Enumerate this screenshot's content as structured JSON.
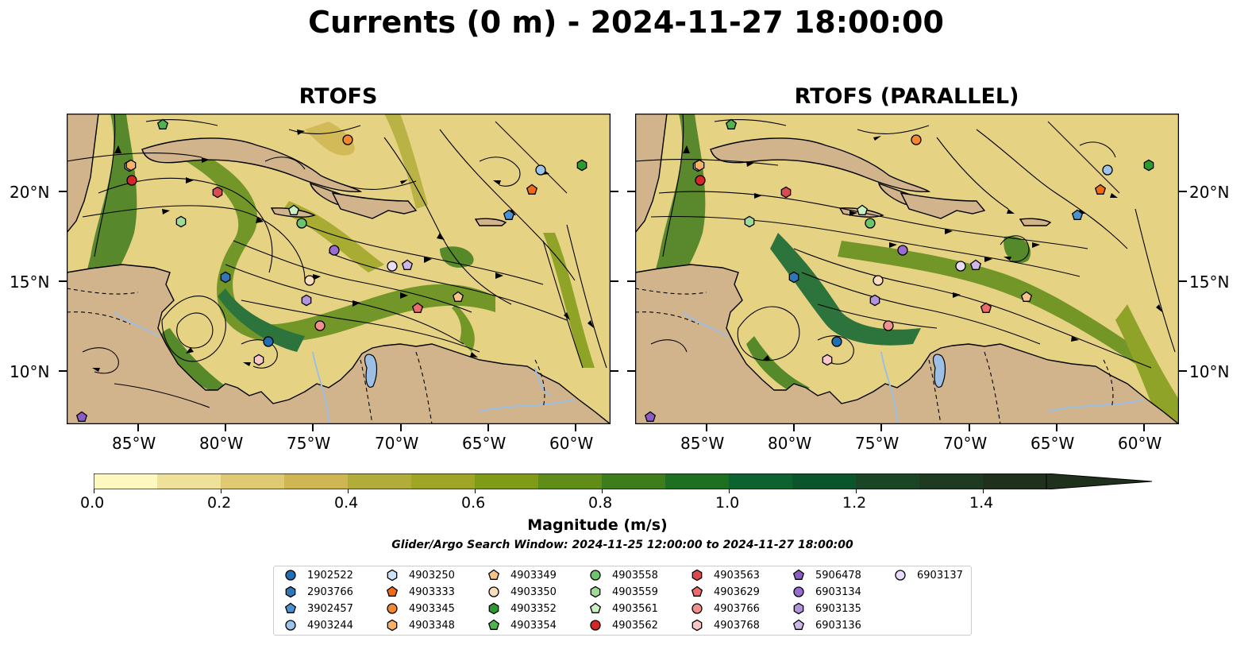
{
  "title": "Currents (0 m) - 2024-11-27 18:00:00",
  "panels": [
    {
      "title": "RTOFS"
    },
    {
      "title": "RTOFS (PARALLEL)"
    }
  ],
  "lat_ticks": [
    "20°N",
    "15°N",
    "10°N"
  ],
  "lon_ticks": [
    "85°W",
    "80°W",
    "75°W",
    "70°W",
    "65°W",
    "60°W"
  ],
  "colorbar": {
    "label": "Magnitude (m/s)",
    "ticks": [
      "0.0",
      "0.2",
      "0.4",
      "0.6",
      "0.8",
      "1.0",
      "1.2",
      "1.4"
    ],
    "colors": [
      "#fdf7c0",
      "#f0e19a",
      "#e0c973",
      "#cfb652",
      "#b2ad3a",
      "#9fa626",
      "#7f9b17",
      "#5f8d18",
      "#3e7d1b",
      "#1f6f23",
      "#0d6330",
      "#0b552d",
      "#1a4626",
      "#1e3b21",
      "#1f311c"
    ]
  },
  "search_window": "Glider/Argo Search Window: 2024-11-25 12:00:00 to 2024-11-27 18:00:00",
  "legend": [
    {
      "id": "1902522",
      "marker": "circle",
      "color": "#1f6fb4"
    },
    {
      "id": "2903766",
      "marker": "hexagon",
      "color": "#2f77b6"
    },
    {
      "id": "3902457",
      "marker": "pentagon",
      "color": "#4c91cf"
    },
    {
      "id": "4903244",
      "marker": "circle",
      "color": "#9cc3eb"
    },
    {
      "id": "4903250",
      "marker": "hexagon",
      "color": "#c9e3fb"
    },
    {
      "id": "4903333",
      "marker": "pentagon",
      "color": "#f26b12"
    },
    {
      "id": "4903345",
      "marker": "circle",
      "color": "#f5882e"
    },
    {
      "id": "4903348",
      "marker": "hexagon",
      "color": "#f7b267"
    },
    {
      "id": "4903349",
      "marker": "pentagon",
      "color": "#f6c48a"
    },
    {
      "id": "4903350",
      "marker": "circle",
      "color": "#fbdcbd"
    },
    {
      "id": "4903352",
      "marker": "hexagon",
      "color": "#2c9a2c"
    },
    {
      "id": "4903354",
      "marker": "pentagon",
      "color": "#4fb34f"
    },
    {
      "id": "4903558",
      "marker": "circle",
      "color": "#6cc46c"
    },
    {
      "id": "4903559",
      "marker": "hexagon",
      "color": "#9fdb97"
    },
    {
      "id": "4903561",
      "marker": "pentagon",
      "color": "#c9f0c0"
    },
    {
      "id": "4903562",
      "marker": "circle",
      "color": "#d62728"
    },
    {
      "id": "4903563",
      "marker": "hexagon",
      "color": "#dc4b4b"
    },
    {
      "id": "4903629",
      "marker": "pentagon",
      "color": "#ef6b6b"
    },
    {
      "id": "4903766",
      "marker": "circle",
      "color": "#f48f8f"
    },
    {
      "id": "4903768",
      "marker": "hexagon",
      "color": "#fac7c7"
    },
    {
      "id": "5906478",
      "marker": "pentagon",
      "color": "#8a5cc4"
    },
    {
      "id": "6903134",
      "marker": "circle",
      "color": "#9a6bd0"
    },
    {
      "id": "6903135",
      "marker": "hexagon",
      "color": "#b394dc"
    },
    {
      "id": "6903136",
      "marker": "pentagon",
      "color": "#cdb6ea"
    },
    {
      "id": "6903137",
      "marker": "circle",
      "color": "#e8dcf8"
    }
  ]
}
